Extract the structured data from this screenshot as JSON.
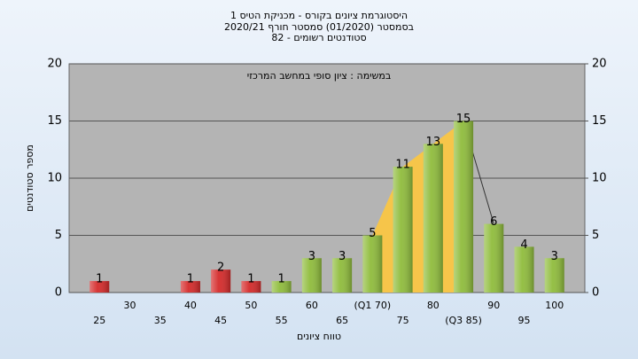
{
  "chart_data": {
    "type": "bar",
    "title": [
      "היסטוגרמת ציונים בקורס - מכניקת הטיס 1",
      "בסמסטר  (01/2020)  סמסטר חורף 2020/21",
      "סטודנטים רשומים - 82"
    ],
    "annotation": "במשימה : ציון סופי במחשב המרכזי",
    "x_label": "טווח ציונים",
    "y_label": "מספר סטודנטים",
    "categories": [
      "25",
      "30",
      "35",
      "40",
      "45",
      "50",
      "55",
      "60",
      "65",
      "(Q1 70)",
      "75",
      "80",
      "(Q3 85)",
      "90",
      "95",
      "100"
    ],
    "values": [
      1,
      0,
      0,
      1,
      2,
      1,
      1,
      3,
      3,
      5,
      11,
      13,
      15,
      6,
      4,
      3
    ],
    "colors": [
      "#d42a2a",
      "#d42a2a",
      "#d42a2a",
      "#d42a2a",
      "#d42a2a",
      "#d42a2a",
      "#8fbc3c",
      "#8fbc3c",
      "#8fbc3c",
      "#8fbc3c",
      "#8fbc3c",
      "#8fbc3c",
      "#8fbc3c",
      "#8fbc3c",
      "#8fbc3c",
      "#8fbc3c"
    ],
    "highlight_color": "#f6c54a",
    "ylim": [
      0,
      20
    ],
    "yticks": [
      0,
      5,
      10,
      15,
      20
    ],
    "y2lim": [
      0,
      20
    ],
    "y2ticks": [
      0,
      5,
      10,
      15,
      20
    ],
    "grid": true
  }
}
